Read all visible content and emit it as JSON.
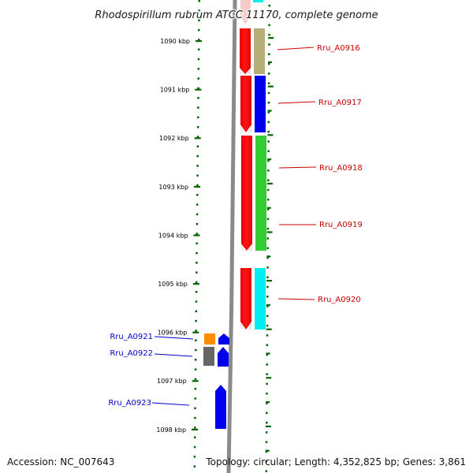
{
  "title": "Rhodospirillum rubrum ATCC 11170, complete genome",
  "footer": {
    "accession": "Accession: NC_007643",
    "summary": "Topology: circular; Length: 4,352,825 bp; Genes: 3,861"
  },
  "ruler": {
    "labels": [
      "1090 kbp",
      "1091 kbp",
      "1092 kbp",
      "1093 kbp",
      "1094 kbp",
      "1095 kbp",
      "1096 kbp",
      "1097 kbp",
      "1098 kbp"
    ],
    "color": "#006400"
  },
  "genes": [
    {
      "label": "Rru_A0916",
      "label_color": "#cc0000",
      "strand": "right",
      "second_color": "#b5ae78"
    },
    {
      "label": "Rru_A0917",
      "label_color": "#cc0000",
      "strand": "right",
      "second_color": "#0000ee"
    },
    {
      "label": "Rru_A0918",
      "label_color": "#cc0000",
      "strand": "right",
      "second_color": "#33cc33"
    },
    {
      "label": "Rru_A0919",
      "label_color": "#cc0000",
      "strand": "right",
      "second_color": "#33cc33"
    },
    {
      "label": "Rru_A0920",
      "label_color": "#cc0000",
      "strand": "right",
      "second_color": "#00eeee"
    },
    {
      "label": "Rru_A0921",
      "label_color": "#0000cc",
      "strand": "left",
      "second_color": "#ff8c00"
    },
    {
      "label": "Rru_A0922",
      "label_color": "#0000cc",
      "strand": "left",
      "second_color": "#666666"
    },
    {
      "label": "Rru_A0923",
      "label_color": "#0000cc",
      "strand": "left",
      "second_color": "#0000ee"
    }
  ],
  "colors": {
    "forward_gene": "#ff0000",
    "reverse_gene": "#0000ee",
    "backbone": "#888888"
  }
}
